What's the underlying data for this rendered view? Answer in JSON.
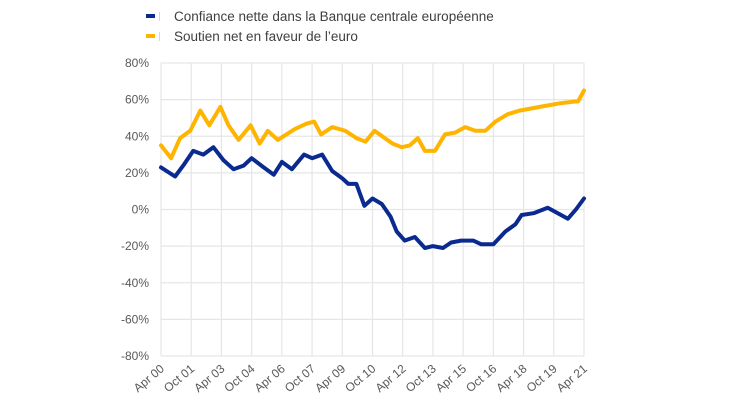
{
  "legend": [
    {
      "label": "Confiance nette dans la Banque centrale européenne",
      "color": "#0a2a8f"
    },
    {
      "label": "Soutien net en faveur de l’euro",
      "color": "#ffb400"
    }
  ],
  "chart_data": {
    "type": "line",
    "title": "",
    "xlabel": "",
    "ylabel": "",
    "ylim": [
      -80,
      80
    ],
    "yticks": [
      "80%",
      "60%",
      "40%",
      "20%",
      "0%",
      "-20%",
      "-40%",
      "-60%",
      "-80%"
    ],
    "xticks": [
      "Apr 00",
      "Oct 01",
      "Apr 03",
      "Oct 04",
      "Apr 06",
      "Oct 07",
      "Apr 09",
      "Oct 10",
      "Apr 12",
      "Oct 13",
      "Apr 15",
      "Oct 16",
      "Apr 18",
      "Oct 19",
      "Apr 21"
    ],
    "grid": true,
    "legend_position": "top",
    "series": [
      {
        "name": "Confiance nette dans la Banque centrale européenne",
        "color": "#0a2a8f",
        "x_years_since_apr00": [
          0,
          0.7,
          1.1,
          1.6,
          2.1,
          2.6,
          3.1,
          3.6,
          4.1,
          4.5,
          5.1,
          5.6,
          6.0,
          6.5,
          7.1,
          7.5,
          8.0,
          8.5,
          9.0,
          9.3,
          9.7,
          10.1,
          10.5,
          10.96,
          11.4,
          11.7,
          12.1,
          12.6,
          13.1,
          13.5,
          14.0,
          14.4,
          14.9,
          15.5,
          15.9,
          16.5,
          17.1,
          17.6,
          17.9,
          18.5,
          19.2,
          20.2,
          20.6,
          21.0
        ],
        "values": [
          23,
          18,
          24,
          32,
          30,
          34,
          27,
          22,
          24,
          28,
          23,
          19,
          26,
          22,
          30,
          28,
          30,
          21,
          17,
          14,
          14,
          2,
          6,
          3,
          -4,
          -12,
          -17,
          -15,
          -21,
          -20,
          -21,
          -18,
          -17,
          -17,
          -19,
          -19,
          -12,
          -8,
          -3,
          -2,
          1,
          -5,
          0,
          6
        ]
      },
      {
        "name": "Soutien net en faveur de l’euro",
        "color": "#ffb400",
        "x_years_since_apr00": [
          0,
          0.5,
          0.95,
          1.45,
          1.95,
          2.4,
          2.95,
          3.35,
          3.85,
          4.45,
          4.9,
          5.3,
          5.8,
          6.65,
          7.25,
          7.6,
          7.95,
          8.5,
          9.15,
          9.7,
          10.15,
          10.6,
          11.5,
          11.95,
          12.35,
          12.75,
          13.1,
          13.6,
          14.1,
          14.6,
          15.1,
          15.6,
          16.1,
          16.6,
          17.2,
          17.8,
          18.8,
          19.8,
          20.55,
          20.7,
          21.0
        ],
        "values": [
          35,
          28,
          39,
          43,
          54,
          46,
          56,
          46,
          38,
          46,
          36,
          43,
          38,
          44,
          47,
          48,
          41,
          45,
          43,
          39,
          37,
          43,
          36,
          34,
          35,
          39,
          32,
          32,
          41,
          42,
          45,
          43,
          43,
          48,
          52,
          54,
          56,
          58,
          59,
          59,
          65
        ]
      }
    ]
  },
  "colors": {
    "grid": "#e6e6e6",
    "axis_text": "#595959"
  }
}
